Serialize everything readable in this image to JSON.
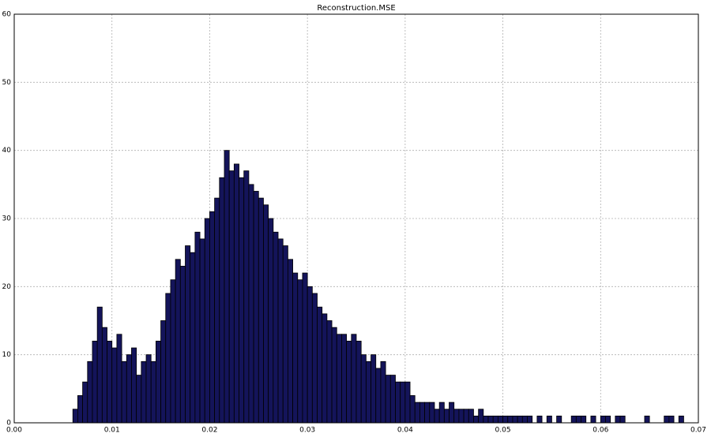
{
  "chart_data": {
    "type": "histogram",
    "title": "Reconstruction.MSE",
    "bins": [
      0.006,
      0.0065,
      0.007,
      0.0075,
      0.008,
      0.0085,
      0.009,
      0.0095,
      0.01,
      0.0105,
      0.011,
      0.0115,
      0.012,
      0.0125,
      0.013,
      0.0135,
      0.014,
      0.0145,
      0.015,
      0.0155,
      0.016,
      0.0165,
      0.017,
      0.0175,
      0.018,
      0.0185,
      0.019,
      0.0195,
      0.02,
      0.0205,
      0.021,
      0.0215,
      0.022,
      0.0225,
      0.023,
      0.0235,
      0.024,
      0.0245,
      0.025,
      0.0255,
      0.026,
      0.0265,
      0.027,
      0.0275,
      0.028,
      0.0285,
      0.029,
      0.0295,
      0.03,
      0.0305,
      0.031,
      0.0315,
      0.032,
      0.0325,
      0.033,
      0.0335,
      0.034,
      0.0345,
      0.035,
      0.0355,
      0.036,
      0.0365,
      0.037,
      0.0375,
      0.038,
      0.0385,
      0.039,
      0.0395,
      0.04,
      0.0405,
      0.041,
      0.0415,
      0.042,
      0.0425,
      0.043,
      0.0435,
      0.044,
      0.0445,
      0.045,
      0.0455,
      0.046,
      0.0465,
      0.047,
      0.0475,
      0.048,
      0.0485,
      0.049,
      0.0495,
      0.05,
      0.0505,
      0.051,
      0.0515,
      0.052,
      0.0525,
      0.053,
      0.0535,
      0.054,
      0.0545,
      0.055,
      0.0555,
      0.056,
      0.0565,
      0.057,
      0.0575,
      0.058,
      0.0585,
      0.059,
      0.0595,
      0.06,
      0.0605,
      0.061,
      0.0615,
      0.062,
      0.0625,
      0.063,
      0.0635,
      0.064,
      0.0645,
      0.065,
      0.0655,
      0.066,
      0.0665,
      0.067,
      0.0675,
      0.068,
      0.0685
    ],
    "values": [
      2,
      4,
      6,
      9,
      12,
      17,
      14,
      12,
      11,
      13,
      9,
      10,
      11,
      7,
      9,
      10,
      9,
      12,
      15,
      19,
      21,
      24,
      23,
      26,
      25,
      28,
      27,
      30,
      31,
      33,
      36,
      40,
      37,
      38,
      36,
      37,
      35,
      34,
      33,
      32,
      30,
      28,
      27,
      26,
      24,
      22,
      21,
      22,
      20,
      19,
      17,
      16,
      15,
      14,
      13,
      13,
      12,
      13,
      12,
      10,
      9,
      10,
      8,
      9,
      7,
      7,
      6,
      6,
      6,
      4,
      3,
      3,
      3,
      3,
      2,
      3,
      2,
      3,
      2,
      2,
      2,
      2,
      1,
      2,
      1,
      1,
      1,
      1,
      1,
      1,
      1,
      1,
      1,
      1,
      0,
      1,
      0,
      1,
      0,
      1,
      0,
      0,
      1,
      1,
      1,
      0,
      1,
      0,
      1,
      1,
      0,
      1,
      1,
      0,
      0,
      0,
      0,
      1,
      0,
      0,
      0,
      1,
      1,
      0,
      1
    ],
    "color": "#14145a",
    "edgecolor": "#000000",
    "xlim": [
      0,
      0.07
    ],
    "xticks": [
      {
        "value": 0,
        "label": "0.00"
      },
      {
        "value": 0.01,
        "label": "0.01"
      },
      {
        "value": 0.02,
        "label": "0.02"
      },
      {
        "value": 0.03,
        "label": "0.03"
      },
      {
        "value": 0.04,
        "label": "0.04"
      },
      {
        "value": 0.05,
        "label": "0.05"
      },
      {
        "value": 0.06,
        "label": "0.06"
      },
      {
        "value": 0.07,
        "label": "0.07"
      }
    ],
    "ylim": [
      0,
      60
    ],
    "yticks": [
      0,
      10,
      20,
      30,
      40,
      50,
      60
    ],
    "grid": true
  }
}
